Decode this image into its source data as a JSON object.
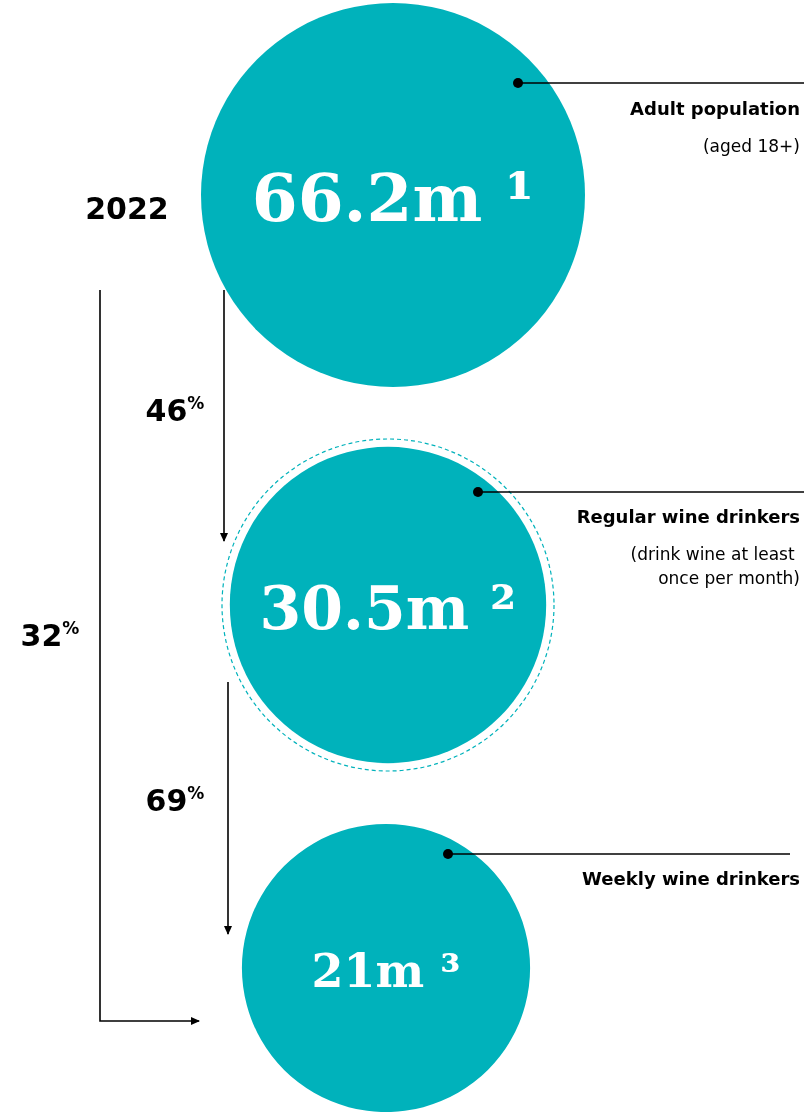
{
  "chart_data": {
    "type": "other",
    "title": "2022",
    "categories": [
      "Adult population",
      "Regular wine drinkers",
      "Weekly wine drinkers"
    ],
    "values": [
      66.2,
      30.5,
      21
    ],
    "value_labels": [
      "66.2m ¹",
      "30.5m ²",
      "21m ³"
    ],
    "color": "#00b2bb",
    "annotations": [
      "(aged 18+)",
      "(drink wine at least once per month)",
      "46%",
      "69%",
      "32%"
    ]
  }
}
